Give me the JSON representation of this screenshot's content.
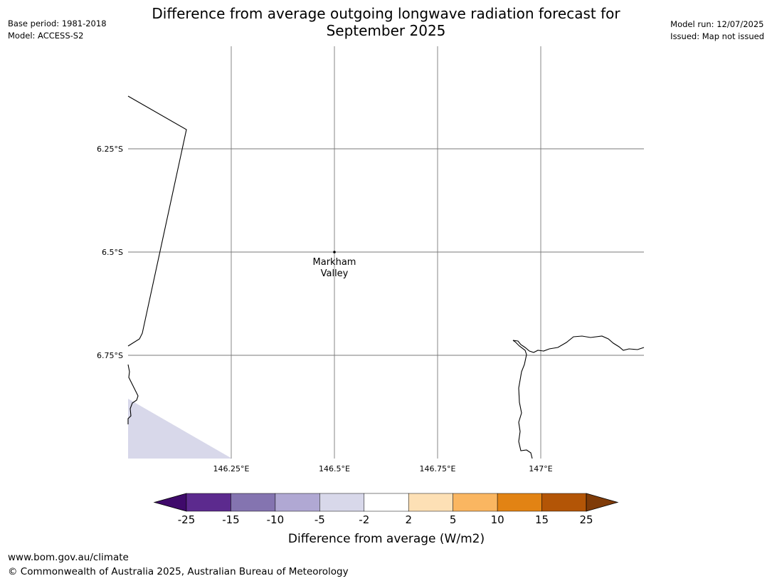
{
  "meta_left": {
    "base_period": "Base period: 1981-2018",
    "model": "Model: ACCESS-S2"
  },
  "meta_right": {
    "model_run": "Model run: 12/07/2025",
    "issued": "Issued: Map not issued"
  },
  "title": {
    "line1": "Difference from average outgoing longwave radiation forecast for",
    "line2": "September 2025"
  },
  "map": {
    "lat_labels": [
      "6.25°S",
      "6.5°S",
      "6.75°S"
    ],
    "lon_labels": [
      "146.25°E",
      "146.5°E",
      "146.75°E",
      "147°E"
    ],
    "place": {
      "name_line1": "Markham",
      "name_line2": "Valley",
      "lat": -6.5,
      "lon": 146.5
    },
    "shaded_color": "#d8d8ea"
  },
  "colorbar": {
    "tick_labels": [
      "-25",
      "-15",
      "-10",
      "-5",
      "-2",
      "2",
      "5",
      "10",
      "15",
      "25"
    ],
    "colors": [
      "#3f0a6b",
      "#5c2a8e",
      "#8474b0",
      "#b0a8d3",
      "#d8d8ea",
      "#ffffff",
      "#fde0b5",
      "#fab661",
      "#e28314",
      "#b35506",
      "#7f3b08"
    ],
    "label": "Difference from average (W/m2)"
  },
  "footer": {
    "website": "www.bom.gov.au/climate",
    "copyright": "© Commonwealth of Australia 2025, Australian Bureau of Meteorology"
  }
}
